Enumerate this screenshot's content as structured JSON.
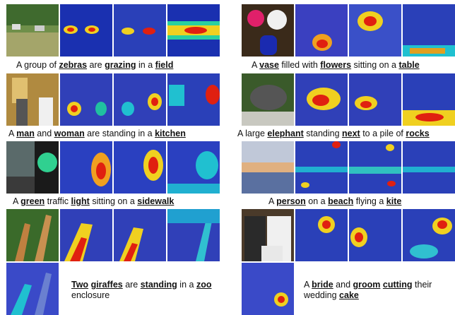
{
  "captions": {
    "zebras": [
      "A group of ",
      "zebras",
      " are ",
      "grazing",
      " in a ",
      "field"
    ],
    "vase": [
      "A ",
      "vase",
      " filled with ",
      "flowers",
      " sitting on a ",
      "table"
    ],
    "man": [
      "A ",
      "man",
      " and ",
      "woman",
      " are standing in a ",
      "kitchen"
    ],
    "elephant": [
      "A large ",
      "elephant",
      " standing ",
      "next",
      " to a pile of ",
      "rocks"
    ],
    "light": [
      "A ",
      "green",
      " traffic ",
      "light",
      " sitting on a ",
      "sidewalk"
    ],
    "person": [
      "A ",
      "person",
      " on a ",
      "beach",
      " flying a ",
      "kite"
    ],
    "giraffes": [
      "Two",
      " ",
      "giraffes",
      " are ",
      "standing",
      " in a ",
      "zoo",
      " enclosure"
    ],
    "bride": [
      "A ",
      "bride",
      " and ",
      "groom",
      " ",
      "cutting",
      " their wedding ",
      "cake"
    ]
  },
  "colors": {
    "heat_hot": "#e02010",
    "heat_warm": "#f8e020",
    "heat_cold": "#1030c0"
  }
}
